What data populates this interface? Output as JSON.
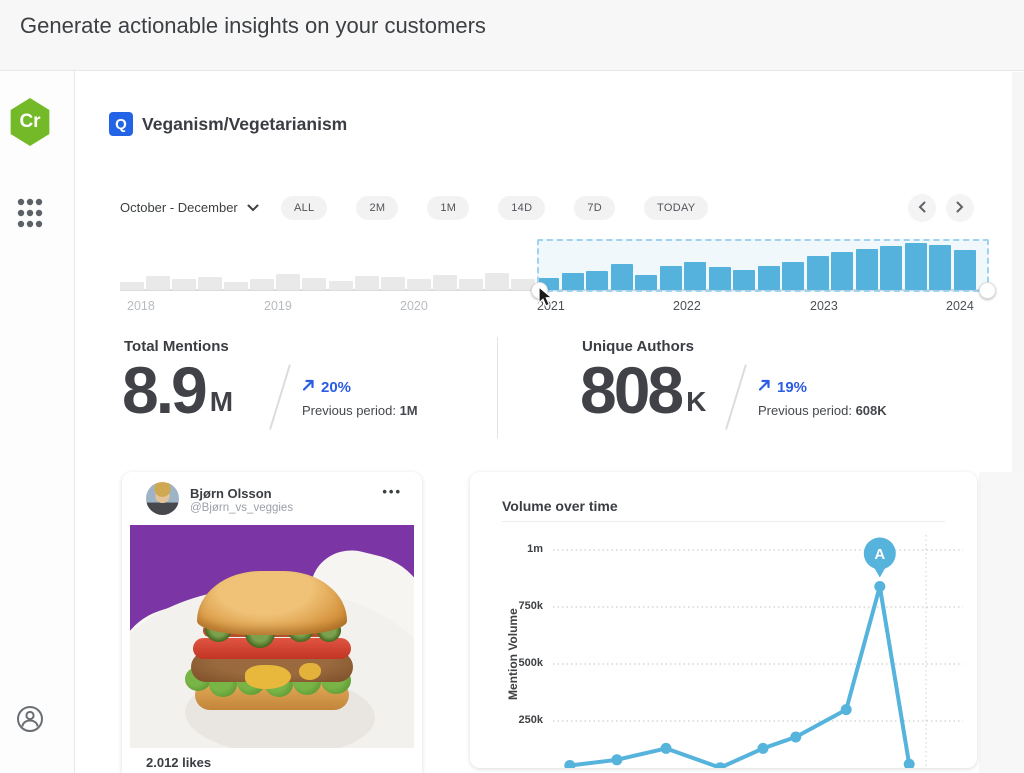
{
  "topbar": {
    "title": "Generate actionable insights on your customers"
  },
  "sidebar": {
    "logo_text": "Cr",
    "logo_color": "#74b927",
    "icons": [
      "apps-grid-icon",
      "account-icon"
    ]
  },
  "topic": {
    "badge_letter": "Q",
    "badge_color": "#2264e5",
    "title": "Veganism/Vegetarianism"
  },
  "controls": {
    "date_range": "October - December",
    "pills": [
      {
        "label": "ALL"
      },
      {
        "label": "2M"
      },
      {
        "label": "1M"
      },
      {
        "label": "14D"
      },
      {
        "label": "7D"
      },
      {
        "label": "TODAY"
      }
    ],
    "icons": [
      "chevron-down-icon",
      "chevron-left-icon",
      "chevron-right-icon"
    ]
  },
  "stats": {
    "left": {
      "label": "Total Mentions",
      "value": "8.9",
      "unit": "M",
      "change": "20%",
      "previous_label": "Previous period: ",
      "previous_value": "1M"
    },
    "right": {
      "label": "Unique Authors",
      "value": "808",
      "unit": "K",
      "change": "19%",
      "previous_label": "Previous period: ",
      "previous_value": "608K"
    }
  },
  "post": {
    "author": "Bjørn Olsson",
    "handle": "@Bjørn_vs_veggies",
    "more_label": "•••",
    "likes": "2.012 likes"
  },
  "chart_data": [
    {
      "name": "timeline-range-selector",
      "type": "bar",
      "unit": "relative mention volume (0-100)",
      "x_tick_labels": [
        "2018",
        "2019",
        "2020",
        "2021",
        "2022",
        "2023",
        "2024"
      ],
      "unselected_values": [
        17,
        30,
        23,
        28,
        17,
        23,
        34,
        26,
        19,
        30,
        28,
        23,
        32,
        23,
        36,
        23
      ],
      "selected_values": [
        26,
        36,
        40,
        55,
        32,
        51,
        60,
        49,
        43,
        51,
        60,
        72,
        81,
        87,
        94,
        100,
        96,
        85
      ],
      "selected_range": [
        "2021",
        "2024"
      ],
      "bar_color_unselected": "#e9e9e9",
      "bar_color_selected": "#55b3dc",
      "grid": false
    },
    {
      "name": "volume-over-time",
      "type": "line",
      "title": "Volume over time",
      "ylabel": "Mention Volume",
      "unit": "thousands of mentions",
      "ylim": [
        0,
        1100
      ],
      "grid": "dotted-horizontal",
      "y_ticks": [
        {
          "label": "1m",
          "value": 1000
        },
        {
          "label": "750k",
          "value": 750
        },
        {
          "label": "500k",
          "value": 500
        },
        {
          "label": "250k",
          "value": 250
        }
      ],
      "points": [
        {
          "x_frac": 0.052,
          "value": 55
        },
        {
          "x_frac": 0.164,
          "value": 80
        },
        {
          "x_frac": 0.281,
          "value": 130
        },
        {
          "x_frac": 0.41,
          "value": 45
        },
        {
          "x_frac": 0.512,
          "value": 130
        },
        {
          "x_frac": 0.59,
          "value": 180
        },
        {
          "x_frac": 0.71,
          "value": 300
        },
        {
          "x_frac": 0.79,
          "value": 840
        },
        {
          "x_frac": 0.86,
          "value": 60
        }
      ],
      "annotation": {
        "label": "A",
        "point_index": 7
      },
      "line_color": "#55b3dc"
    }
  ]
}
